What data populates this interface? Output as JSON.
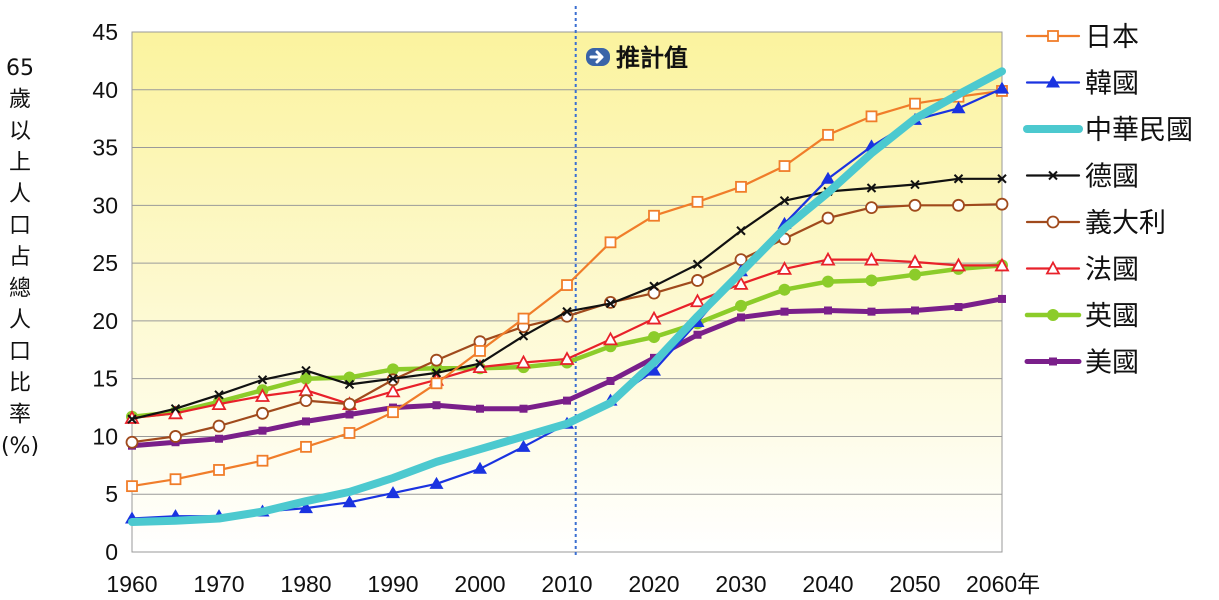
{
  "chart_data": {
    "type": "line",
    "title": "",
    "ylabel": "65歲以上人口占總人口比率(%)",
    "xlabel": "",
    "ylim": [
      0,
      45
    ],
    "xlim": [
      1960,
      2060
    ],
    "y_ticks": [
      "0",
      "5",
      "10",
      "15",
      "20",
      "25",
      "30",
      "35",
      "40",
      "45"
    ],
    "x_ticks": [
      "1960",
      "1970",
      "1980",
      "1990",
      "2000",
      "2010",
      "2020",
      "2030",
      "2040",
      "2050",
      "2060年"
    ],
    "annotation": {
      "text": "推計值",
      "x": 2011
    },
    "legend_position": "right",
    "x": [
      1960,
      1965,
      1970,
      1975,
      1980,
      1985,
      1990,
      1995,
      2000,
      2005,
      2010,
      2015,
      2020,
      2025,
      2030,
      2035,
      2040,
      2045,
      2050,
      2055,
      2060
    ],
    "series": [
      {
        "name": "日本",
        "color": "#f07d2a",
        "marker": "square-open",
        "values": [
          5.7,
          6.3,
          7.1,
          7.9,
          9.1,
          10.3,
          12.1,
          14.6,
          17.4,
          20.2,
          23.1,
          26.8,
          29.1,
          30.3,
          31.6,
          33.4,
          36.1,
          37.7,
          38.8,
          39.4,
          39.9
        ]
      },
      {
        "name": "韓國",
        "color": "#1a33e0",
        "marker": "triangle-filled",
        "values": [
          2.9,
          3.1,
          3.1,
          3.5,
          3.8,
          4.3,
          5.1,
          5.9,
          7.2,
          9.1,
          11.1,
          13.1,
          15.7,
          19.9,
          24.3,
          28.4,
          32.3,
          35.1,
          37.4,
          38.4,
          40.1
        ]
      },
      {
        "name": "中華民國",
        "color": "#4cc9cf",
        "marker": "none",
        "values": [
          2.6,
          2.7,
          2.9,
          3.5,
          4.4,
          5.2,
          6.4,
          7.8,
          8.9,
          10.0,
          11.1,
          12.9,
          16.4,
          20.4,
          24.2,
          28.0,
          31.1,
          34.5,
          37.5,
          39.6,
          41.6
        ]
      },
      {
        "name": "德國",
        "color": "#111111",
        "marker": "x",
        "values": [
          11.5,
          12.4,
          13.6,
          14.9,
          15.7,
          14.5,
          15.0,
          15.5,
          16.3,
          18.7,
          20.8,
          21.5,
          23.0,
          24.9,
          27.8,
          30.4,
          31.2,
          31.5,
          31.8,
          32.3,
          32.3
        ]
      },
      {
        "name": "義大利",
        "color": "#a04a1c",
        "marker": "circle-open",
        "values": [
          9.5,
          10.0,
          10.9,
          12.0,
          13.1,
          12.8,
          14.9,
          16.6,
          18.2,
          19.5,
          20.4,
          21.6,
          22.4,
          23.5,
          25.3,
          27.1,
          28.9,
          29.8,
          30.0,
          30.0,
          30.1
        ]
      },
      {
        "name": "法國",
        "color": "#e8212a",
        "marker": "triangle-open",
        "values": [
          11.6,
          12.0,
          12.8,
          13.5,
          14.0,
          12.8,
          13.9,
          14.9,
          16.0,
          16.4,
          16.7,
          18.4,
          20.2,
          21.7,
          23.2,
          24.5,
          25.3,
          25.3,
          25.1,
          24.8,
          24.8
        ]
      },
      {
        "name": "英國",
        "color": "#8ccc2a",
        "marker": "circle-filled",
        "values": [
          11.7,
          12.1,
          13.0,
          14.0,
          15.0,
          15.1,
          15.8,
          15.9,
          15.9,
          16.0,
          16.4,
          17.8,
          18.6,
          19.8,
          21.3,
          22.7,
          23.4,
          23.5,
          24.0,
          24.5,
          24.8
        ]
      },
      {
        "name": "美國",
        "color": "#7a1f8a",
        "marker": "square-filled",
        "values": [
          9.2,
          9.5,
          9.8,
          10.5,
          11.3,
          11.9,
          12.5,
          12.7,
          12.4,
          12.4,
          13.1,
          14.8,
          16.8,
          18.8,
          20.3,
          20.8,
          20.9,
          20.8,
          20.9,
          21.2,
          21.9
        ]
      }
    ]
  }
}
